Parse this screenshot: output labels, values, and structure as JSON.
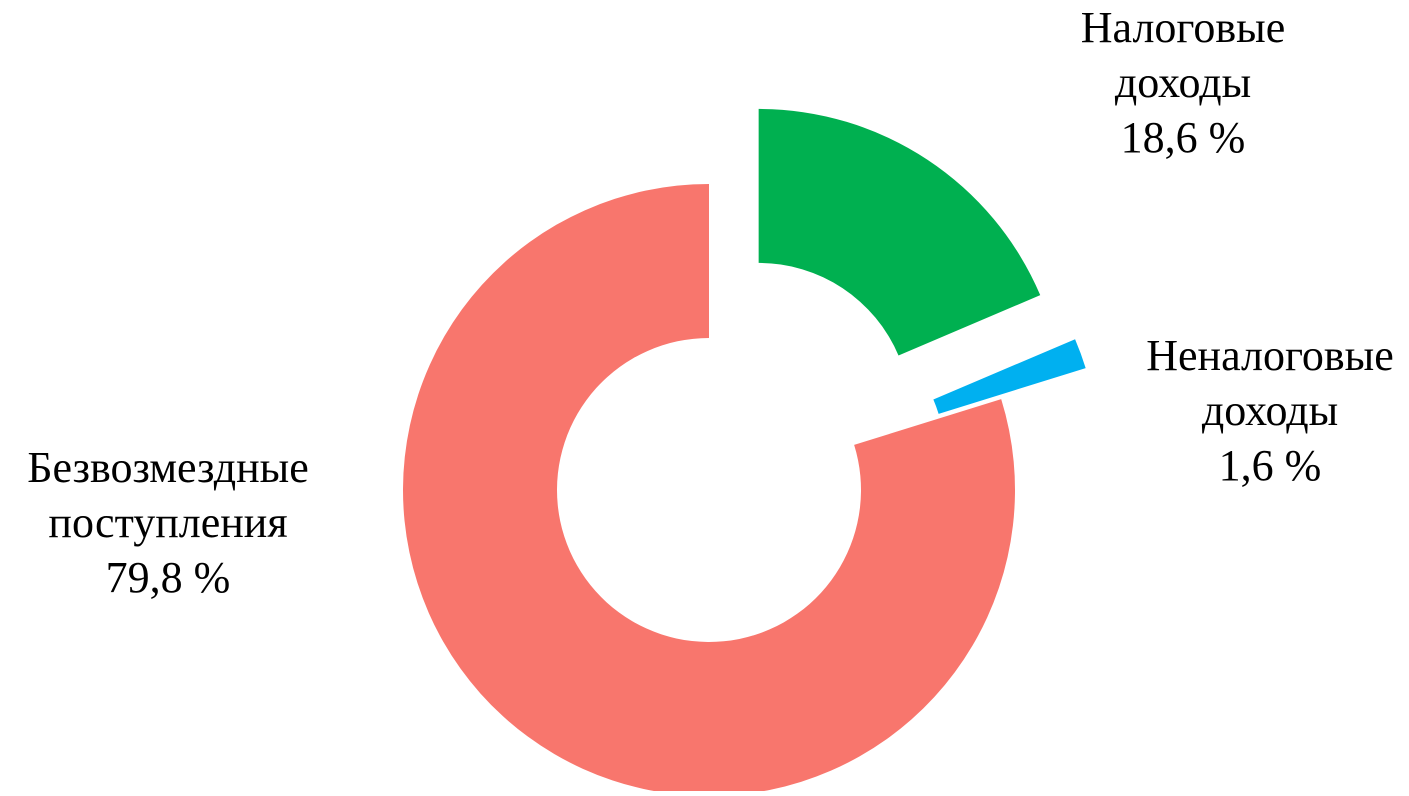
{
  "chart_data": {
    "type": "pie",
    "style": "doughnut",
    "title": "",
    "slices": [
      {
        "label": [
          "Налоговые",
          "доходы"
        ],
        "value": 18.6,
        "display": "18,6 %",
        "color": "#00B050",
        "exploded": true
      },
      {
        "label": [
          "Неналоговые",
          "доходы"
        ],
        "value": 1.6,
        "display": "1,6 %",
        "color": "#00B0F0",
        "exploded": true
      },
      {
        "label": [
          "Безвозмездные",
          "поступления"
        ],
        "value": 79.8,
        "display": "79,8 %",
        "color": "#F8766D",
        "exploded": false
      }
    ]
  }
}
